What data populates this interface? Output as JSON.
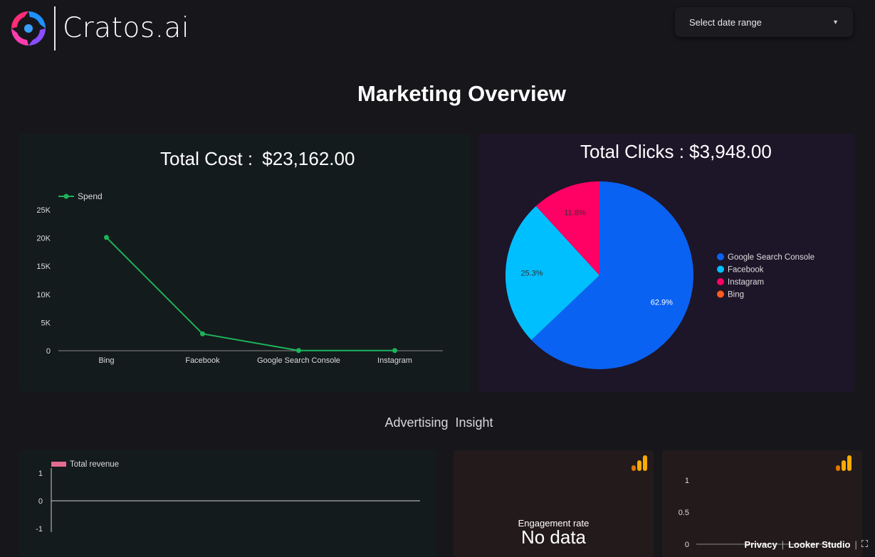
{
  "brand": {
    "name": "Cratos.ai"
  },
  "header": {
    "date_range_label": "Select date range"
  },
  "page_title": "Marketing Overview",
  "cost_card": {
    "label": "Total Cost :",
    "value": "$23,162.00"
  },
  "clicks_card": {
    "label": "Total Clicks :",
    "value": "$3,948.00"
  },
  "section_subtitle": "Advertising  Insight",
  "engagement": {
    "label": "Engagement rate",
    "value": "No data"
  },
  "footer": {
    "privacy": "Privacy",
    "product": "Looker Studio"
  },
  "icons": {
    "analytics": "analytics-bars-icon",
    "fullscreen": "fullscreen-icon",
    "dropdown": "caret-down-icon"
  },
  "colors": {
    "spend_line": "#1db35a",
    "google_search_console": "#0a62f2",
    "facebook": "#00bfff",
    "instagram": "#ff0064",
    "bing": "#ff5a1f",
    "revenue": "#e36b8f",
    "analytics_icon": "#f9ab00"
  },
  "chart_data": [
    {
      "type": "line",
      "legend": [
        "Spend"
      ],
      "legend_position": "top-left",
      "categories": [
        "Bing",
        "Facebook",
        "Google Search Console",
        "Instagram"
      ],
      "series": [
        {
          "name": "Spend",
          "values": [
            20100,
            3000,
            30,
            30
          ]
        }
      ],
      "yticks": [
        "0",
        "5K",
        "10K",
        "15K",
        "20K",
        "25K"
      ],
      "ylim": [
        0,
        25000
      ]
    },
    {
      "type": "pie",
      "legend_position": "right",
      "slices": [
        {
          "name": "Google Search Console",
          "value": 62.9,
          "label": "62.9%"
        },
        {
          "name": "Facebook",
          "value": 25.3,
          "label": "25.3%"
        },
        {
          "name": "Instagram",
          "value": 11.8,
          "label": "11.8%"
        },
        {
          "name": "Bing",
          "value": 0,
          "label": ""
        }
      ]
    },
    {
      "type": "line",
      "legend": [
        "Total revenue"
      ],
      "legend_position": "top-left",
      "series": [
        {
          "name": "Total revenue",
          "values": [
            0,
            0
          ]
        }
      ],
      "yticks": [
        "1",
        "0",
        "-1"
      ],
      "ylim": [
        -1,
        1
      ]
    },
    {
      "type": "line",
      "series": [],
      "yticks": [
        "1",
        "0.5",
        "0"
      ],
      "ylim": [
        0,
        1
      ]
    }
  ]
}
